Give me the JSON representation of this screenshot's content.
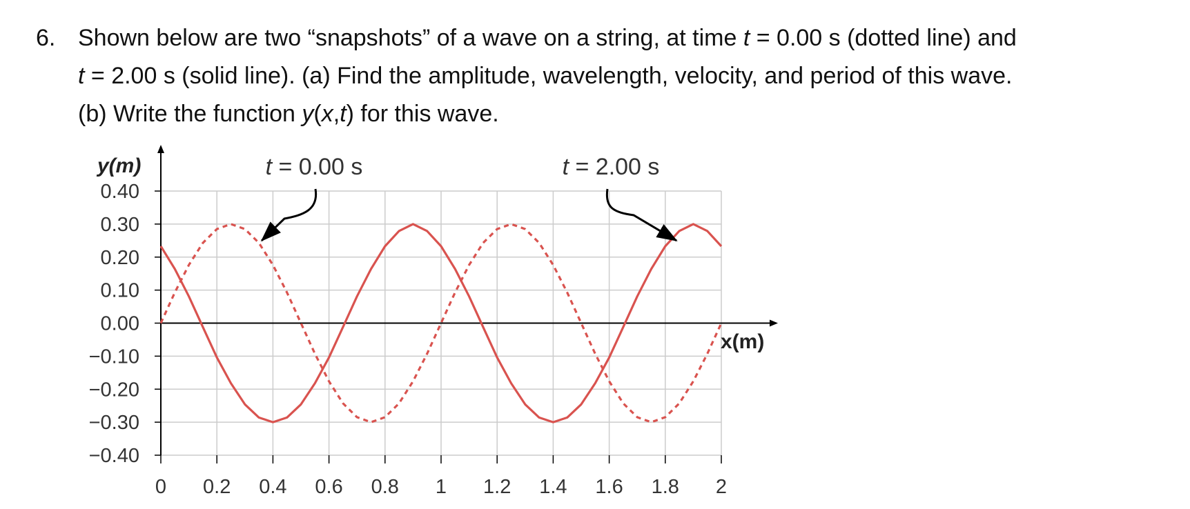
{
  "problem": {
    "number": "6.",
    "line1": {
      "a": "Shown below are two “snapshots” of a wave on a string, at time ",
      "var": "t",
      "b": " = 0.00 s (dotted line) and"
    },
    "line2": {
      "var": "t",
      "b": " = 2.00 s (solid line).  (a) Find the amplitude, wavelength, velocity, and period of this wave."
    },
    "line3": {
      "a": "(b) Write the function ",
      "y": "y",
      "paren_open": "(",
      "x": "x",
      "comma": ",",
      "t": "t",
      "paren_close": ")",
      "b": " for this wave."
    }
  },
  "chart_data": {
    "type": "line",
    "title": "",
    "xlabel": "x(m)",
    "ylabel": "y(m)",
    "xlim": [
      0,
      2
    ],
    "ylim": [
      -0.4,
      0.4
    ],
    "x_ticks": [
      0,
      0.2,
      0.4,
      0.6,
      0.8,
      1,
      1.2,
      1.4,
      1.6,
      1.8,
      2
    ],
    "x_tick_labels": [
      "0",
      "0.2",
      "0.4",
      "0.6",
      "0.8",
      "1",
      "1.2",
      "1.4",
      "1.6",
      "1.8",
      "2"
    ],
    "y_ticks": [
      0.4,
      0.3,
      0.2,
      0.1,
      0,
      -0.1,
      -0.2,
      -0.3,
      -0.4
    ],
    "y_tick_labels": [
      "0.40",
      "0.30",
      "0.20",
      "0.10",
      "0.00",
      "−0.10",
      "−0.20",
      "−0.30",
      "−0.40"
    ],
    "grid": true,
    "series": [
      {
        "style": "dotted",
        "color": "#d9534f",
        "x": [
          0,
          0.05,
          0.1,
          0.15,
          0.2,
          0.25,
          0.3,
          0.35,
          0.4,
          0.45,
          0.5,
          0.55,
          0.6,
          0.65,
          0.7,
          0.75,
          0.8,
          0.85,
          0.9,
          0.95,
          1,
          1.05,
          1.1,
          1.15,
          1.2,
          1.25,
          1.3,
          1.35,
          1.4,
          1.45,
          1.5,
          1.55,
          1.6,
          1.65,
          1.7,
          1.75,
          1.8,
          1.85,
          1.9,
          1.95,
          2
        ],
        "y": [
          0,
          0.093,
          0.176,
          0.243,
          0.285,
          0.3,
          0.285,
          0.243,
          0.176,
          0.093,
          0,
          -0.093,
          -0.176,
          -0.243,
          -0.285,
          -0.3,
          -0.285,
          -0.243,
          -0.176,
          -0.093,
          0,
          0.093,
          0.176,
          0.243,
          0.285,
          0.3,
          0.285,
          0.243,
          0.176,
          0.093,
          0,
          -0.093,
          -0.176,
          -0.243,
          -0.285,
          -0.3,
          -0.285,
          -0.243,
          -0.176,
          -0.093,
          0
        ]
      },
      {
        "style": "solid",
        "color": "#d9534f",
        "x": [
          0,
          0.05,
          0.1,
          0.15,
          0.2,
          0.25,
          0.3,
          0.35,
          0.4,
          0.45,
          0.5,
          0.55,
          0.6,
          0.65,
          0.7,
          0.75,
          0.8,
          0.85,
          0.9,
          0.95,
          1,
          1.05,
          1.1,
          1.15,
          1.2,
          1.25,
          1.3,
          1.35,
          1.4,
          1.45,
          1.5,
          1.55,
          1.6,
          1.65,
          1.7,
          1.75,
          1.8,
          1.85,
          1.9,
          1.95,
          2
        ],
        "y": [
          0.233,
          0.164,
          0.081,
          -0.012,
          -0.104,
          -0.182,
          -0.246,
          -0.286,
          -0.3,
          -0.286,
          -0.246,
          -0.182,
          -0.104,
          -0.012,
          0.081,
          0.164,
          0.233,
          0.279,
          0.3,
          0.279,
          0.233,
          0.164,
          0.081,
          -0.012,
          -0.104,
          -0.182,
          -0.246,
          -0.286,
          -0.3,
          -0.286,
          -0.246,
          -0.182,
          -0.104,
          -0.012,
          0.081,
          0.164,
          0.233,
          0.279,
          0.3,
          0.279,
          0.233
        ]
      }
    ],
    "annotations": [
      {
        "var": "t",
        "text": " = 0.00 s",
        "target": {
          "x": 0.36,
          "y": 0.25
        }
      },
      {
        "var": "t",
        "text": " = 2.00 s",
        "target": {
          "x": 1.84,
          "y": 0.25
        }
      }
    ]
  }
}
